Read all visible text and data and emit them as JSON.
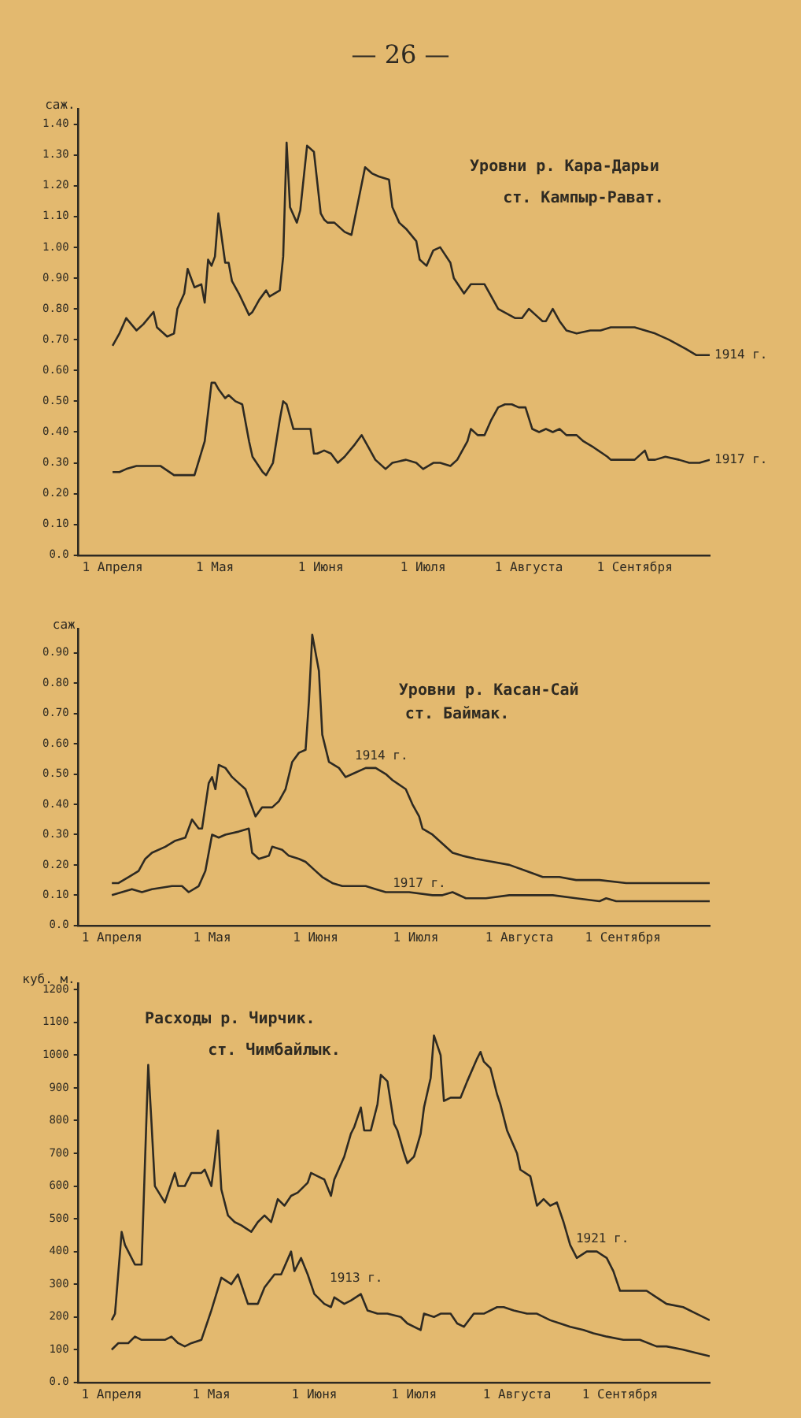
{
  "chart_data": [
    {
      "type": "line",
      "title": "Уровни р. Кара-Дарьи",
      "subtitle": "ст. Кампыр-Рават.",
      "ylabel": "саж.",
      "annotations": [
        "— 26 —"
      ],
      "xlim": [
        "--03-22",
        "--09-23"
      ],
      "xticks": [
        {
          "value": "--04-01",
          "label": "1 Апреля"
        },
        {
          "value": "--05-01",
          "label": "1 Мая"
        },
        {
          "value": "--06-01",
          "label": "1 Июня"
        },
        {
          "value": "--07-01",
          "label": "1 Июля"
        },
        {
          "value": "--08-01",
          "label": "1 Августа"
        },
        {
          "value": "--09-01",
          "label": "1 Сентября"
        }
      ],
      "ylim": [
        0,
        1.45
      ],
      "yticks": [
        {
          "value": 0,
          "label": "0.0"
        },
        {
          "value": 0.1,
          "label": "0.10"
        },
        {
          "value": 0.2,
          "label": "0.20"
        },
        {
          "value": 0.3,
          "label": "0.30"
        },
        {
          "value": 0.4,
          "label": "0.40"
        },
        {
          "value": 0.5,
          "label": "0.50"
        },
        {
          "value": 0.6,
          "label": "0.60"
        },
        {
          "value": 0.7,
          "label": "0.70"
        },
        {
          "value": 0.8,
          "label": "0.80"
        },
        {
          "value": 0.9,
          "label": "0.90"
        },
        {
          "value": 1,
          "label": "1.00"
        },
        {
          "value": 1.1,
          "label": "1.10"
        },
        {
          "value": 1.2,
          "label": "1.20"
        },
        {
          "value": 1.3,
          "label": "1.30"
        },
        {
          "value": 1.4,
          "label": "1.40"
        }
      ],
      "grid": false,
      "legend": false,
      "series": [
        {
          "name": "1914 г.",
          "color": "#2e2a22",
          "x": [
            "--04-01",
            "--04-03",
            "--04-05",
            "--04-08",
            "--04-10",
            "--04-13",
            "--04-14",
            "--04-17",
            "--04-19",
            "--04-20",
            "--04-22",
            "--04-23",
            "--04-25",
            "--04-27",
            "--04-28",
            "--04-29",
            "--04-30",
            "--05-01",
            "--05-02",
            "--05-04",
            "--05-05",
            "--05-06",
            "--05-08",
            "--05-11",
            "--05-12",
            "--05-14",
            "--05-16",
            "--05-17",
            "--05-20",
            "--05-21",
            "--05-22",
            "--05-23",
            "--05-25",
            "--05-26",
            "--05-28",
            "--05-30",
            "--06-01",
            "--06-02",
            "--06-03",
            "--06-05",
            "--06-08",
            "--06-10",
            "--06-12",
            "--06-14",
            "--06-16",
            "--06-18",
            "--06-21",
            "--06-22",
            "--06-24",
            "--06-26",
            "--06-29",
            "--06-30",
            "--07-02",
            "--07-04",
            "--07-06",
            "--07-09",
            "--07-10",
            "--07-13",
            "--07-15",
            "--07-19",
            "--07-21",
            "--07-23",
            "--07-28",
            "--07-30",
            "--08-01",
            "--08-03",
            "--08-05",
            "--08-06",
            "--08-08",
            "--08-10",
            "--08-12",
            "--08-15",
            "--08-19",
            "--08-22",
            "--08-25",
            "--09-01",
            "--09-07",
            "--09-11",
            "--09-16",
            "--09-19",
            "--09-23"
          ],
          "values": [
            0.68,
            0.72,
            0.77,
            0.73,
            0.75,
            0.79,
            0.74,
            0.71,
            0.72,
            0.8,
            0.85,
            0.93,
            0.87,
            0.88,
            0.82,
            0.96,
            0.94,
            0.97,
            1.11,
            0.95,
            0.95,
            0.89,
            0.85,
            0.78,
            0.79,
            0.83,
            0.86,
            0.84,
            0.86,
            0.97,
            1.34,
            1.13,
            1.08,
            1.12,
            1.33,
            1.31,
            1.11,
            1.09,
            1.08,
            1.08,
            1.05,
            1.04,
            1.15,
            1.26,
            1.24,
            1.23,
            1.22,
            1.13,
            1.08,
            1.06,
            1.02,
            0.96,
            0.94,
            0.99,
            1.0,
            0.95,
            0.9,
            0.85,
            0.88,
            0.88,
            0.84,
            0.8,
            0.77,
            0.77,
            0.8,
            0.78,
            0.76,
            0.76,
            0.8,
            0.76,
            0.73,
            0.72,
            0.73,
            0.73,
            0.74,
            0.74,
            0.72,
            0.7,
            0.67,
            0.65,
            0.65
          ]
        },
        {
          "name": "1917 г.",
          "color": "#2e2a22",
          "x": [
            "--04-01",
            "--04-03",
            "--04-05",
            "--04-08",
            "--04-11",
            "--04-15",
            "--04-19",
            "--04-25",
            "--04-28",
            "--04-30",
            "--05-01",
            "--05-02",
            "--05-04",
            "--05-05",
            "--05-07",
            "--05-09",
            "--05-11",
            "--05-12",
            "--05-15",
            "--05-16",
            "--05-18",
            "--05-20",
            "--05-21",
            "--05-22",
            "--05-24",
            "--05-26",
            "--05-29",
            "--05-30",
            "--05-31",
            "--06-02",
            "--06-04",
            "--06-06",
            "--06-08",
            "--06-11",
            "--06-13",
            "--06-15",
            "--06-17",
            "--06-20",
            "--06-22",
            "--06-26",
            "--06-29",
            "--07-01",
            "--07-04",
            "--07-06",
            "--07-09",
            "--07-11",
            "--07-14",
            "--07-15",
            "--07-17",
            "--07-19",
            "--07-21",
            "--07-23",
            "--07-25",
            "--07-27",
            "--07-29",
            "--07-31",
            "--08-02",
            "--08-04",
            "--08-06",
            "--08-08",
            "--08-10",
            "--08-12",
            "--08-15",
            "--08-17",
            "--08-20",
            "--08-24",
            "--08-25",
            "--09-01",
            "--09-04",
            "--09-05",
            "--09-07",
            "--09-10",
            "--09-14",
            "--09-17",
            "--09-20",
            "--09-23"
          ],
          "values": [
            0.27,
            0.27,
            0.28,
            0.29,
            0.29,
            0.29,
            0.26,
            0.26,
            0.37,
            0.56,
            0.56,
            0.54,
            0.51,
            0.52,
            0.5,
            0.49,
            0.37,
            0.32,
            0.27,
            0.26,
            0.3,
            0.44,
            0.5,
            0.49,
            0.41,
            0.41,
            0.41,
            0.33,
            0.33,
            0.34,
            0.33,
            0.3,
            0.32,
            0.36,
            0.39,
            0.35,
            0.31,
            0.28,
            0.3,
            0.31,
            0.3,
            0.28,
            0.3,
            0.3,
            0.29,
            0.31,
            0.37,
            0.41,
            0.39,
            0.39,
            0.44,
            0.48,
            0.49,
            0.49,
            0.48,
            0.48,
            0.41,
            0.4,
            0.41,
            0.4,
            0.41,
            0.39,
            0.39,
            0.37,
            0.35,
            0.32,
            0.31,
            0.31,
            0.34,
            0.31,
            0.31,
            0.32,
            0.31,
            0.3,
            0.3,
            0.31
          ]
        }
      ]
    },
    {
      "type": "line",
      "title": "Уровни р. Касан-Сай",
      "subtitle": "ст. Баймак.",
      "ylabel": "саж",
      "xlim": [
        "--03-22",
        "--09-27"
      ],
      "xticks": [
        {
          "value": "--04-01",
          "label": "1 Апреля"
        },
        {
          "value": "--05-01",
          "label": "1 Мая"
        },
        {
          "value": "--06-01",
          "label": "1 Июня"
        },
        {
          "value": "--07-01",
          "label": "1 Июля"
        },
        {
          "value": "--08-01",
          "label": "1 Августа"
        },
        {
          "value": "--09-01",
          "label": "1 Сентября"
        }
      ],
      "ylim": [
        0,
        0.98
      ],
      "yticks": [
        {
          "value": 0,
          "label": "0.0"
        },
        {
          "value": 0.1,
          "label": "0.10"
        },
        {
          "value": 0.2,
          "label": "0.20"
        },
        {
          "value": 0.3,
          "label": "0.30"
        },
        {
          "value": 0.4,
          "label": "0.40"
        },
        {
          "value": 0.5,
          "label": "0.50"
        },
        {
          "value": 0.6,
          "label": "0.60"
        },
        {
          "value": 0.7,
          "label": "0.70"
        },
        {
          "value": 0.8,
          "label": "0.80"
        },
        {
          "value": 0.9,
          "label": "0.90"
        }
      ],
      "grid": false,
      "legend": false,
      "series": [
        {
          "name": "1914 г.",
          "color": "#2e2a22",
          "x": [
            "--04-01",
            "--04-03",
            "--04-06",
            "--04-09",
            "--04-11",
            "--04-13",
            "--04-17",
            "--04-20",
            "--04-23",
            "--04-25",
            "--04-27",
            "--04-28",
            "--04-30",
            "--05-01",
            "--05-02",
            "--05-03",
            "--05-05",
            "--05-07",
            "--05-09",
            "--05-11",
            "--05-13",
            "--05-14",
            "--05-16",
            "--05-19",
            "--05-21",
            "--05-23",
            "--05-25",
            "--05-27",
            "--05-29",
            "--05-30",
            "--05-31",
            "--06-02",
            "--06-03",
            "--06-05",
            "--06-08",
            "--06-10",
            "--06-12",
            "--06-16",
            "--06-19",
            "--06-22",
            "--06-24",
            "--06-28",
            "--06-30",
            "--07-02",
            "--07-03",
            "--07-06",
            "--07-09",
            "--07-12",
            "--07-15",
            "--07-19",
            "--07-24",
            "--07-29",
            "--08-03",
            "--08-08",
            "--08-13",
            "--08-18",
            "--08-25",
            "--09-02",
            "--09-10",
            "--09-27"
          ],
          "values": [
            0.14,
            0.14,
            0.16,
            0.18,
            0.22,
            0.24,
            0.26,
            0.28,
            0.29,
            0.35,
            0.32,
            0.32,
            0.47,
            0.49,
            0.45,
            0.53,
            0.52,
            0.49,
            0.47,
            0.45,
            0.39,
            0.36,
            0.39,
            0.39,
            0.41,
            0.45,
            0.54,
            0.57,
            0.58,
            0.74,
            0.96,
            0.84,
            0.63,
            0.54,
            0.52,
            0.49,
            0.5,
            0.52,
            0.52,
            0.5,
            0.48,
            0.45,
            0.4,
            0.36,
            0.32,
            0.3,
            0.27,
            0.24,
            0.23,
            0.22,
            0.21,
            0.2,
            0.18,
            0.16,
            0.16,
            0.15,
            0.15,
            0.14,
            0.14,
            0.14
          ]
        },
        {
          "name": "1917 г.",
          "color": "#2e2a22",
          "x": [
            "--04-01",
            "--04-04",
            "--04-07",
            "--04-10",
            "--04-13",
            "--04-19",
            "--04-22",
            "--04-24",
            "--04-27",
            "--04-29",
            "--05-01",
            "--05-03",
            "--05-05",
            "--05-09",
            "--05-12",
            "--05-13",
            "--05-15",
            "--05-18",
            "--05-19",
            "--05-22",
            "--05-24",
            "--05-27",
            "--05-29",
            "--06-01",
            "--06-03",
            "--06-06",
            "--06-09",
            "--06-12",
            "--06-16",
            "--06-19",
            "--06-22",
            "--06-29",
            "--07-06",
            "--07-09",
            "--07-12",
            "--07-16",
            "--07-22",
            "--07-29",
            "--08-05",
            "--08-11",
            "--08-18",
            "--08-25",
            "--08-27",
            "--08-30",
            "--09-07",
            "--09-14",
            "--09-20",
            "--09-27"
          ],
          "values": [
            0.1,
            0.11,
            0.12,
            0.11,
            0.12,
            0.13,
            0.13,
            0.11,
            0.13,
            0.18,
            0.3,
            0.29,
            0.3,
            0.31,
            0.32,
            0.24,
            0.22,
            0.23,
            0.26,
            0.25,
            0.23,
            0.22,
            0.21,
            0.18,
            0.16,
            0.14,
            0.13,
            0.13,
            0.13,
            0.12,
            0.11,
            0.11,
            0.1,
            0.1,
            0.11,
            0.09,
            0.09,
            0.1,
            0.1,
            0.1,
            0.09,
            0.08,
            0.09,
            0.08,
            0.08,
            0.08,
            0.08,
            0.08
          ]
        }
      ]
    },
    {
      "type": "line",
      "title": "Расходы р. Чирчик.",
      "subtitle": "ст. Чимбайлык.",
      "ylabel": "куб. м.",
      "xlim": [
        "--03-22",
        "--09-28"
      ],
      "xticks": [
        {
          "value": "--04-01",
          "label": "1 Апреля"
        },
        {
          "value": "--05-01",
          "label": "1 Мая"
        },
        {
          "value": "--06-01",
          "label": "1 Июня"
        },
        {
          "value": "--07-01",
          "label": "1 Июля"
        },
        {
          "value": "--08-01",
          "label": "1 Августа"
        },
        {
          "value": "--09-01",
          "label": "1 Сентября"
        }
      ],
      "ylim": [
        0,
        1220
      ],
      "yticks": [
        {
          "value": 0,
          "label": "0.0"
        },
        100,
        200,
        300,
        400,
        500,
        600,
        700,
        800,
        900,
        1000,
        1100,
        1200
      ],
      "grid": false,
      "legend": false,
      "series": [
        {
          "name": "1921 г.",
          "color": "#2e2a22",
          "x": [
            "--04-01",
            "--04-02",
            "--04-04",
            "--04-05",
            "--04-06",
            "--04-08",
            "--04-10",
            "--04-12",
            "--04-13",
            "--04-14",
            "--04-17",
            "--04-18",
            "--04-20",
            "--04-21",
            "--04-23",
            "--04-25",
            "--04-28",
            "--04-29",
            "--05-01",
            "--05-02",
            "--05-03",
            "--05-04",
            "--05-06",
            "--05-08",
            "--05-10",
            "--05-13",
            "--05-15",
            "--05-17",
            "--05-19",
            "--05-21",
            "--05-23",
            "--05-25",
            "--05-27",
            "--05-30",
            "--05-31",
            "--06-02",
            "--06-04",
            "--06-06",
            "--06-07",
            "--06-10",
            "--06-12",
            "--06-13",
            "--06-15",
            "--06-16",
            "--06-18",
            "--06-20",
            "--06-21",
            "--06-23",
            "--06-25",
            "--06-26",
            "--06-28",
            "--06-29",
            "--07-01",
            "--07-03",
            "--07-04",
            "--07-06",
            "--07-07",
            "--07-09",
            "--07-10",
            "--07-12",
            "--07-15",
            "--07-17",
            "--07-20",
            "--07-21",
            "--07-22",
            "--07-24",
            "--07-26",
            "--07-27",
            "--07-29",
            "--08-01",
            "--08-02",
            "--08-05",
            "--08-07",
            "--08-09",
            "--08-11",
            "--08-13",
            "--08-15",
            "--08-17",
            "--08-19",
            "--08-22",
            "--08-25",
            "--08-28",
            "--08-30",
            "--09-01",
            "--09-05",
            "--09-09",
            "--09-12",
            "--09-15",
            "--09-20",
            "--09-24",
            "--09-28"
          ],
          "values": [
            190,
            210,
            460,
            420,
            400,
            360,
            360,
            970,
            790,
            600,
            550,
            580,
            640,
            600,
            600,
            640,
            640,
            650,
            600,
            680,
            770,
            590,
            510,
            490,
            480,
            460,
            490,
            510,
            490,
            560,
            540,
            570,
            580,
            610,
            640,
            630,
            620,
            570,
            620,
            690,
            760,
            780,
            840,
            770,
            770,
            850,
            940,
            920,
            790,
            770,
            700,
            670,
            690,
            760,
            840,
            930,
            1060,
            1000,
            860,
            870,
            870,
            920,
            990,
            1010,
            980,
            960,
            880,
            850,
            770,
            700,
            650,
            630,
            540,
            560,
            540,
            550,
            490,
            420,
            380,
            400,
            400,
            380,
            340,
            280,
            280,
            280,
            260,
            240,
            230,
            210,
            190
          ]
        },
        {
          "name": "1913 г.",
          "color": "#2e2a22",
          "x": [
            "--04-01",
            "--04-03",
            "--04-06",
            "--04-08",
            "--04-10",
            "--04-14",
            "--04-17",
            "--04-19",
            "--04-21",
            "--04-23",
            "--04-25",
            "--04-28",
            "--05-01",
            "--05-04",
            "--05-07",
            "--05-09",
            "--05-12",
            "--05-15",
            "--05-17",
            "--05-20",
            "--05-22",
            "--05-25",
            "--05-26",
            "--05-28",
            "--05-30",
            "--06-01",
            "--06-04",
            "--06-06",
            "--06-07",
            "--06-10",
            "--06-12",
            "--06-15",
            "--06-17",
            "--06-20",
            "--06-23",
            "--06-27",
            "--06-29",
            "--07-03",
            "--07-04",
            "--07-07",
            "--07-09",
            "--07-12",
            "--07-14",
            "--07-16",
            "--07-19",
            "--07-22",
            "--07-26",
            "--07-28",
            "--07-31",
            "--08-04",
            "--08-07",
            "--08-11",
            "--08-14",
            "--08-17",
            "--08-21",
            "--08-24",
            "--08-28",
            "--09-02",
            "--09-07",
            "--09-12",
            "--09-15",
            "--09-20",
            "--09-24",
            "--09-28"
          ],
          "values": [
            100,
            120,
            120,
            140,
            130,
            130,
            130,
            140,
            120,
            110,
            120,
            130,
            220,
            320,
            300,
            330,
            240,
            240,
            290,
            330,
            330,
            400,
            340,
            380,
            330,
            270,
            240,
            230,
            260,
            240,
            250,
            270,
            220,
            210,
            210,
            200,
            180,
            160,
            210,
            200,
            210,
            210,
            180,
            170,
            210,
            210,
            230,
            230,
            220,
            210,
            210,
            190,
            180,
            170,
            160,
            150,
            140,
            130,
            130,
            110,
            110,
            100,
            90,
            80
          ]
        }
      ]
    }
  ]
}
